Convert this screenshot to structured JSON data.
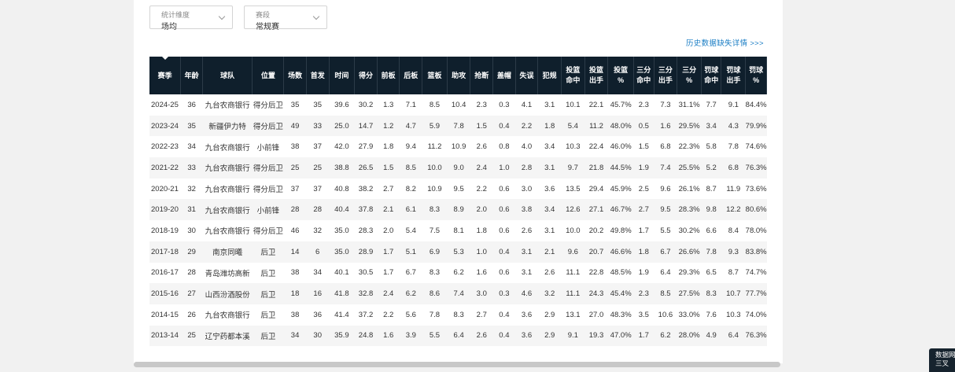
{
  "filters": {
    "stat_dimension": {
      "label": "统计维度",
      "value": "场均"
    },
    "season_type": {
      "label": "赛段",
      "value": "常规赛"
    }
  },
  "history_link": "历史数据缺失详情 >>>",
  "table": {
    "headers": [
      "赛季",
      "年龄",
      "球队",
      "位置",
      "场数",
      "首发",
      "时间",
      "得分",
      "前板",
      "后板",
      "篮板",
      "助攻",
      "抢断",
      "盖帽",
      "失误",
      "犯规",
      "投篮\n命中",
      "投篮\n出手",
      "投篮\n%",
      "三分\n命中",
      "三分\n出手",
      "三分\n%",
      "罚球\n命中",
      "罚球\n出手",
      "罚球\n%"
    ],
    "rows": [
      [
        "2024-25",
        "36",
        "九台农商银行",
        "得分后卫",
        "35",
        "35",
        "39.6",
        "30.2",
        "1.3",
        "7.1",
        "8.5",
        "10.4",
        "2.3",
        "0.3",
        "4.1",
        "3.1",
        "10.1",
        "22.1",
        "45.7%",
        "2.3",
        "7.3",
        "31.1%",
        "7.7",
        "9.1",
        "84.4%"
      ],
      [
        "2023-24",
        "35",
        "新疆伊力特",
        "得分后卫",
        "49",
        "33",
        "25.0",
        "14.7",
        "1.2",
        "4.7",
        "5.9",
        "7.8",
        "1.5",
        "0.4",
        "2.2",
        "1.8",
        "5.4",
        "11.2",
        "48.0%",
        "0.5",
        "1.6",
        "29.5%",
        "3.4",
        "4.3",
        "79.9%"
      ],
      [
        "2022-23",
        "34",
        "九台农商银行",
        "小前锋",
        "38",
        "37",
        "42.0",
        "27.9",
        "1.8",
        "9.4",
        "11.2",
        "10.9",
        "2.6",
        "0.8",
        "4.0",
        "3.4",
        "10.3",
        "22.4",
        "46.0%",
        "1.5",
        "6.8",
        "22.3%",
        "5.8",
        "7.8",
        "74.6%"
      ],
      [
        "2021-22",
        "33",
        "九台农商银行",
        "得分后卫",
        "25",
        "25",
        "38.8",
        "26.5",
        "1.5",
        "8.5",
        "10.0",
        "9.0",
        "2.4",
        "1.0",
        "2.8",
        "3.1",
        "9.7",
        "21.8",
        "44.5%",
        "1.9",
        "7.4",
        "25.5%",
        "5.2",
        "6.8",
        "76.3%"
      ],
      [
        "2020-21",
        "32",
        "九台农商银行",
        "得分后卫",
        "37",
        "37",
        "40.8",
        "38.2",
        "2.7",
        "8.2",
        "10.9",
        "9.5",
        "2.2",
        "0.6",
        "3.0",
        "3.6",
        "13.5",
        "29.4",
        "45.9%",
        "2.5",
        "9.6",
        "26.1%",
        "8.7",
        "11.9",
        "73.6%"
      ],
      [
        "2019-20",
        "31",
        "九台农商银行",
        "小前锋",
        "28",
        "28",
        "40.4",
        "37.8",
        "2.1",
        "6.1",
        "8.3",
        "8.9",
        "2.0",
        "0.6",
        "3.8",
        "3.4",
        "12.6",
        "27.1",
        "46.7%",
        "2.7",
        "9.5",
        "28.3%",
        "9.8",
        "12.2",
        "80.6%"
      ],
      [
        "2018-19",
        "30",
        "九台农商银行",
        "得分后卫",
        "46",
        "32",
        "35.0",
        "28.3",
        "2.0",
        "5.4",
        "7.5",
        "8.1",
        "1.8",
        "0.6",
        "2.6",
        "3.1",
        "10.0",
        "20.2",
        "49.8%",
        "1.7",
        "5.5",
        "30.2%",
        "6.6",
        "8.4",
        "78.0%"
      ],
      [
        "2017-18",
        "29",
        "南京同曦",
        "后卫",
        "14",
        "6",
        "35.0",
        "28.9",
        "1.7",
        "5.1",
        "6.9",
        "5.3",
        "1.0",
        "0.4",
        "3.1",
        "2.1",
        "9.6",
        "20.7",
        "46.6%",
        "1.8",
        "6.7",
        "26.6%",
        "7.8",
        "9.3",
        "83.8%"
      ],
      [
        "2016-17",
        "28",
        "青岛潍坊高新",
        "后卫",
        "38",
        "34",
        "40.1",
        "30.5",
        "1.7",
        "6.7",
        "8.3",
        "6.2",
        "1.6",
        "0.6",
        "3.1",
        "2.6",
        "11.1",
        "22.8",
        "48.5%",
        "1.9",
        "6.4",
        "29.3%",
        "6.5",
        "8.7",
        "74.7%"
      ],
      [
        "2015-16",
        "27",
        "山西汾酒股份",
        "后卫",
        "18",
        "16",
        "41.8",
        "32.8",
        "2.4",
        "6.2",
        "8.6",
        "7.4",
        "3.0",
        "0.3",
        "4.6",
        "3.2",
        "11.1",
        "24.3",
        "45.4%",
        "2.3",
        "8.5",
        "27.5%",
        "8.3",
        "10.7",
        "77.7%"
      ],
      [
        "2014-15",
        "26",
        "九台农商银行",
        "后卫",
        "38",
        "36",
        "41.4",
        "37.2",
        "2.2",
        "5.6",
        "7.8",
        "8.3",
        "2.7",
        "0.4",
        "3.6",
        "2.9",
        "13.1",
        "27.0",
        "48.3%",
        "3.5",
        "10.6",
        "33.0%",
        "7.6",
        "10.3",
        "74.0%"
      ],
      [
        "2013-14",
        "25",
        "辽宁药都本溪",
        "后卫",
        "34",
        "30",
        "35.9",
        "24.8",
        "1.6",
        "3.9",
        "5.5",
        "6.4",
        "2.6",
        "0.4",
        "3.6",
        "2.9",
        "9.1",
        "19.3",
        "47.0%",
        "1.7",
        "6.2",
        "28.0%",
        "4.9",
        "6.4",
        "76.3%"
      ]
    ]
  },
  "corner_badge": {
    "line1": "数据网",
    "line2": "三叉"
  }
}
